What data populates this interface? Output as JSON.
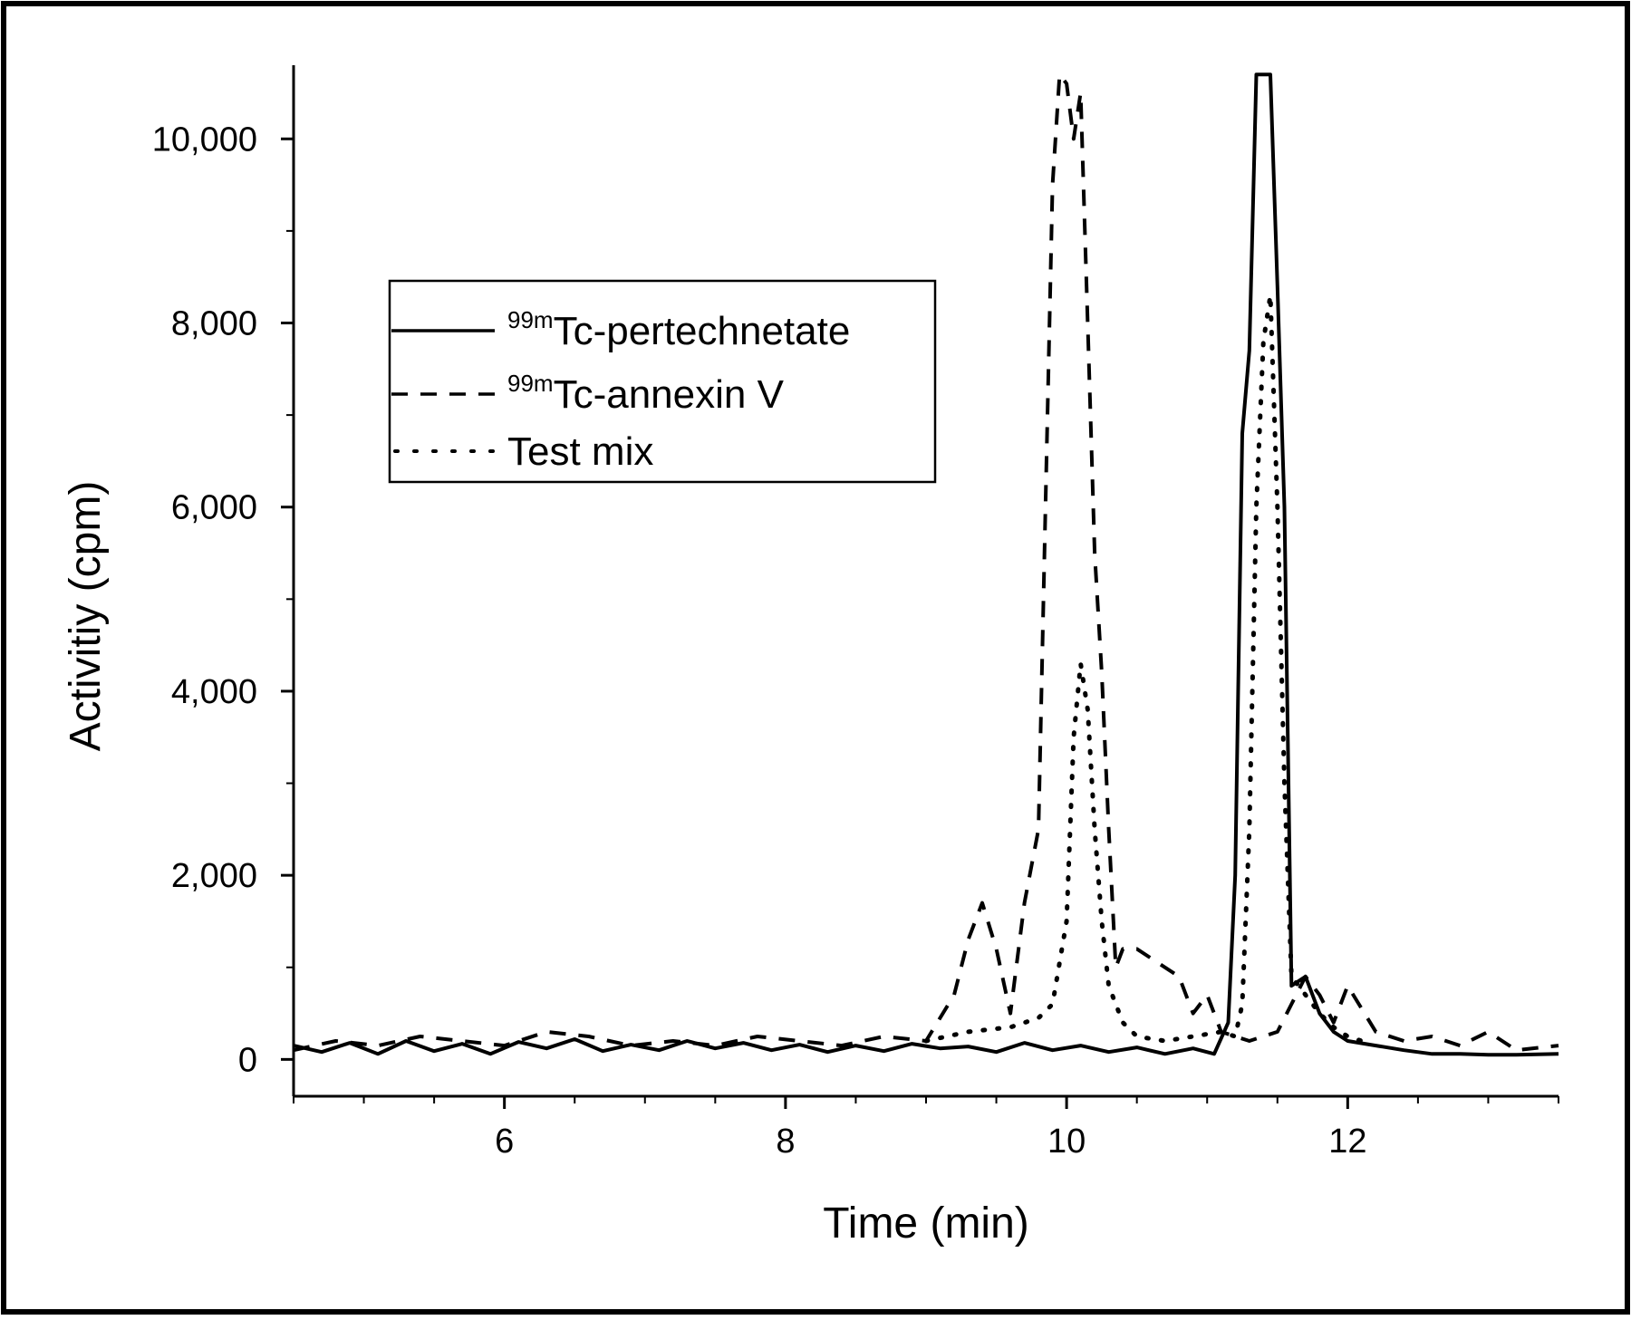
{
  "chart_data": {
    "type": "line",
    "title": "",
    "xlabel": "Time (min)",
    "ylabel": "Activitiy (cpm)",
    "xlim": [
      4.5,
      13.5
    ],
    "ylim": [
      -400,
      10800
    ],
    "x_ticks": [
      6,
      8,
      10,
      12
    ],
    "x_tick_labels": [
      "6",
      "8",
      "10",
      "12"
    ],
    "y_ticks": [
      0,
      2000,
      4000,
      6000,
      8000,
      10000
    ],
    "y_tick_labels": [
      "0",
      "2,000",
      "4,000",
      "6,000",
      "8,000",
      "10,000"
    ],
    "grid": false,
    "legend_position": "upper-left",
    "series": [
      {
        "name": "Tc-pertechnetate",
        "name_superscript": "99m",
        "style": "solid",
        "x": [
          4.5,
          4.7,
          4.9,
          5.1,
          5.3,
          5.5,
          5.7,
          5.9,
          6.1,
          6.3,
          6.5,
          6.7,
          6.9,
          7.1,
          7.3,
          7.5,
          7.7,
          7.9,
          8.1,
          8.3,
          8.5,
          8.7,
          8.9,
          9.1,
          9.3,
          9.5,
          9.7,
          9.9,
          10.1,
          10.3,
          10.5,
          10.7,
          10.9,
          11.05,
          11.15,
          11.2,
          11.25,
          11.3,
          11.35,
          11.4,
          11.45,
          11.5,
          11.55,
          11.6,
          11.7,
          11.8,
          11.9,
          12.0,
          12.2,
          12.4,
          12.6,
          12.8,
          13.0,
          13.2,
          13.5
        ],
        "y": [
          150,
          80,
          180,
          60,
          200,
          90,
          170,
          60,
          190,
          120,
          220,
          90,
          160,
          100,
          200,
          120,
          180,
          100,
          160,
          80,
          150,
          90,
          170,
          120,
          140,
          80,
          180,
          100,
          150,
          80,
          130,
          60,
          120,
          60,
          400,
          2000,
          6800,
          7700,
          10700,
          10700,
          10700,
          8400,
          6000,
          800,
          900,
          500,
          300,
          200,
          150,
          100,
          60,
          60,
          50,
          50,
          60
        ]
      },
      {
        "name": "Tc-annexin V",
        "name_superscript": "99m",
        "style": "dashed",
        "x": [
          4.5,
          4.8,
          5.1,
          5.4,
          5.7,
          6.0,
          6.3,
          6.6,
          6.9,
          7.2,
          7.5,
          7.8,
          8.1,
          8.4,
          8.7,
          9.0,
          9.2,
          9.3,
          9.4,
          9.5,
          9.6,
          9.7,
          9.8,
          9.85,
          9.9,
          9.95,
          10.0,
          10.05,
          10.1,
          10.15,
          10.2,
          10.25,
          10.3,
          10.35,
          10.4,
          10.5,
          10.6,
          10.7,
          10.8,
          10.9,
          11.0,
          11.1,
          11.3,
          11.5,
          11.6,
          11.7,
          11.8,
          11.9,
          12.0,
          12.2,
          12.4,
          12.6,
          12.8,
          13.0,
          13.2,
          13.5
        ],
        "y": [
          100,
          200,
          150,
          250,
          200,
          150,
          300,
          250,
          150,
          200,
          150,
          250,
          200,
          150,
          250,
          200,
          700,
          1300,
          1700,
          1200,
          500,
          1700,
          2500,
          6000,
          9500,
          10700,
          10600,
          10000,
          10500,
          8000,
          5500,
          4200,
          2500,
          1000,
          1200,
          1200,
          1100,
          1000,
          900,
          500,
          700,
          300,
          200,
          300,
          600,
          900,
          700,
          400,
          800,
          300,
          200,
          250,
          150,
          300,
          100,
          150
        ]
      },
      {
        "name": "Test mix",
        "name_superscript": "",
        "style": "dotted",
        "x": [
          9.0,
          9.3,
          9.6,
          9.8,
          9.9,
          10.0,
          10.05,
          10.1,
          10.15,
          10.2,
          10.25,
          10.3,
          10.4,
          10.5,
          10.7,
          10.9,
          11.1,
          11.2,
          11.25,
          11.3,
          11.35,
          11.4,
          11.45,
          11.5,
          11.55,
          11.6,
          11.7,
          11.8,
          11.9,
          12.0,
          12.1
        ],
        "y": [
          200,
          300,
          350,
          450,
          600,
          1500,
          3500,
          4300,
          3800,
          2500,
          1500,
          800,
          400,
          250,
          200,
          250,
          300,
          250,
          600,
          2500,
          6000,
          7800,
          8300,
          6000,
          3000,
          900,
          700,
          500,
          350,
          250,
          200
        ]
      }
    ]
  }
}
